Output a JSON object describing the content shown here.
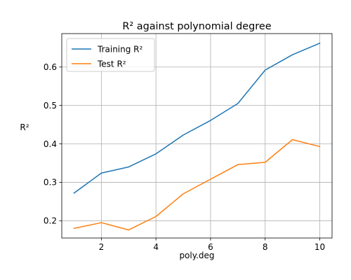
{
  "chart_data": {
    "type": "line",
    "title": "R² against polynomial degree",
    "xlabel": "poly.deg",
    "ylabel": "R²",
    "x": [
      1,
      2,
      3,
      4,
      5,
      6,
      7,
      8,
      9,
      10
    ],
    "xlim": [
      0.55,
      10.45
    ],
    "ylim": [
      0.155,
      0.687
    ],
    "xticks": [
      2,
      4,
      6,
      8,
      10
    ],
    "yticks": [
      0.2,
      0.3,
      0.4,
      0.5,
      0.6
    ],
    "grid": true,
    "legend": "upper left",
    "series": [
      {
        "name": "Training R²",
        "color": "#1f77b4",
        "values": [
          0.272,
          0.324,
          0.34,
          0.374,
          0.423,
          0.461,
          0.505,
          0.592,
          0.632,
          0.662
        ]
      },
      {
        "name": "Test R²",
        "color": "#ff7f0e",
        "values": [
          0.18,
          0.195,
          0.176,
          0.211,
          0.27,
          0.308,
          0.346,
          0.352,
          0.411,
          0.393
        ]
      }
    ]
  }
}
